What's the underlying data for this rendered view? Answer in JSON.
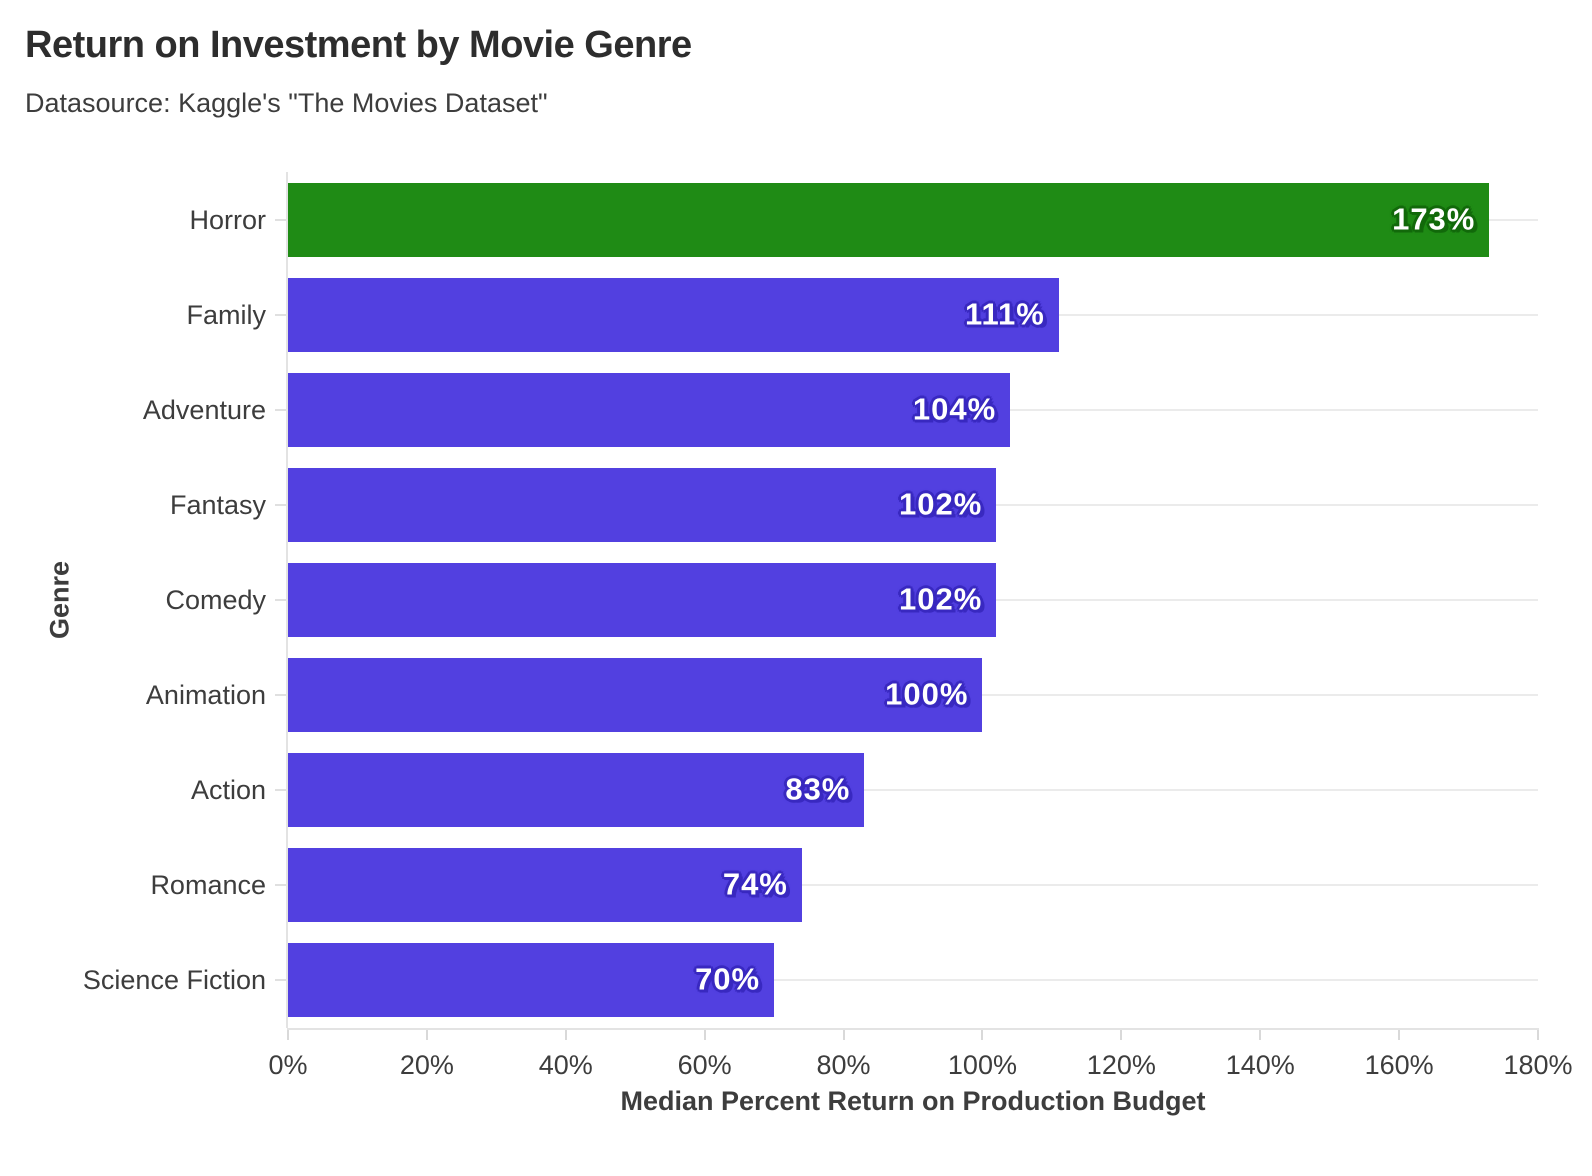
{
  "chart_data": {
    "type": "bar",
    "orientation": "horizontal",
    "title": "Return on Investment by Movie Genre",
    "subtitle": "Datasource: Kaggle's \"The Movies Dataset\"",
    "xlabel": "Median Percent Return on Production Budget",
    "ylabel": "Genre",
    "categories": [
      "Horror",
      "Family",
      "Adventure",
      "Fantasy",
      "Comedy",
      "Animation",
      "Action",
      "Romance",
      "Science Fiction"
    ],
    "values": [
      173,
      111,
      104,
      102,
      102,
      100,
      83,
      74,
      70
    ],
    "bar_labels": [
      "173%",
      "111%",
      "104%",
      "102%",
      "102%",
      "100%",
      "83%",
      "74%",
      "70%"
    ],
    "bar_colors": [
      "#1f8b15",
      "#5240e0",
      "#5240e0",
      "#5240e0",
      "#5240e0",
      "#5240e0",
      "#5240e0",
      "#5240e0",
      "#5240e0"
    ],
    "bar_halo_colors": [
      "#136a0c",
      "#3a2ac0",
      "#3a2ac0",
      "#3a2ac0",
      "#3a2ac0",
      "#3a2ac0",
      "#3a2ac0",
      "#3a2ac0",
      "#3a2ac0"
    ],
    "highlight_category": "Horror",
    "xlim": [
      0,
      180
    ],
    "x_tick_values": [
      0,
      20,
      40,
      60,
      80,
      100,
      120,
      140,
      160,
      180
    ],
    "x_tick_labels": [
      "0%",
      "20%",
      "40%",
      "60%",
      "80%",
      "100%",
      "120%",
      "140%",
      "160%",
      "180%"
    ],
    "grid": "horizontal-only",
    "legend": "none",
    "colors": {
      "background": "#ffffff",
      "grid": "#ebebeb",
      "axis_line": "#e3e3e3",
      "tick": "#d9d9d9",
      "tick_label_text": "#3d3d3d",
      "axis_title_text": "#3d3d3d",
      "title_text": "#2d2d2d",
      "subtitle_text": "#3d3d3d",
      "bar_label_text": "#ffffff"
    }
  }
}
